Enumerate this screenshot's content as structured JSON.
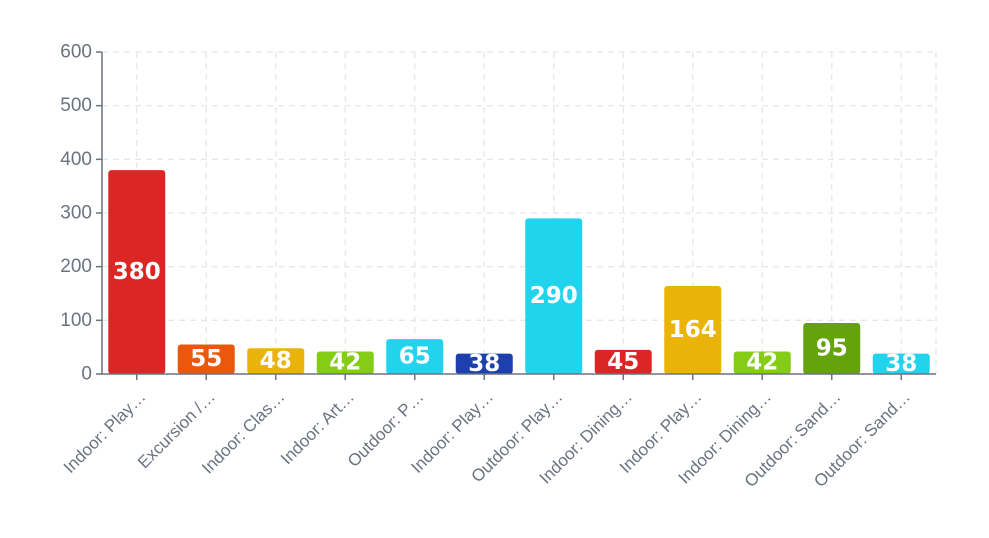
{
  "chart_data": {
    "type": "bar",
    "categories": [
      "Indoor: Play…",
      "Excursion /…",
      "Indoor: Clas…",
      "Indoor: Art…",
      "Outdoor: P…",
      "Indoor: Play…",
      "Outdoor: Play…",
      "Indoor: Dining…",
      "Indoor: Play…",
      "Indoor: Dining…",
      "Outdoor: Sand…",
      "Outdoor: Sand…"
    ],
    "values": [
      380,
      55,
      48,
      42,
      65,
      38,
      290,
      45,
      164,
      42,
      95,
      38
    ],
    "colors": [
      "#dc2626",
      "#ea580c",
      "#eab308",
      "#84cc16",
      "#22d3ee",
      "#1e40af",
      "#22d3ee",
      "#dc2626",
      "#eab308",
      "#84cc16",
      "#65a30d",
      "#22d3ee"
    ],
    "ylim": [
      0,
      600
    ],
    "yticks": [
      0,
      100,
      200,
      300,
      400,
      500,
      600
    ],
    "grid": true,
    "title": "",
    "xlabel": "",
    "ylabel": ""
  }
}
